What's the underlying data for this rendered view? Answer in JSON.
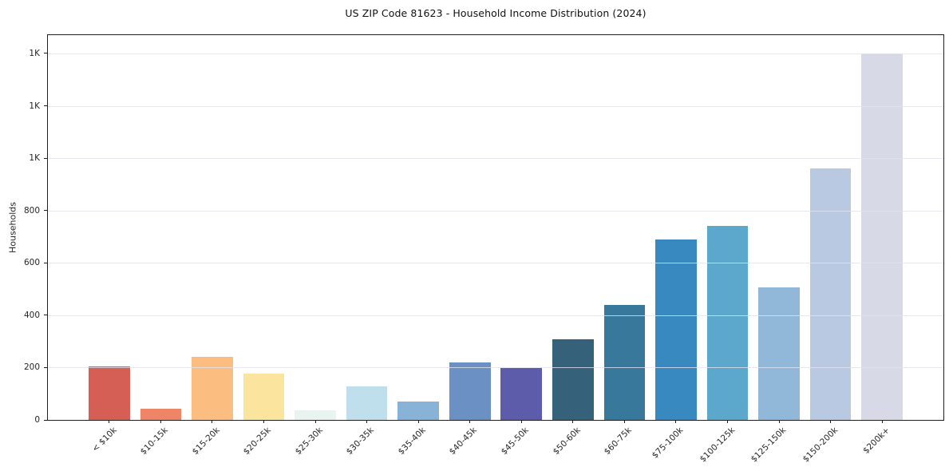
{
  "window": {
    "title": "US ZIP Code 81623 - Household Income Distribution (2024)"
  },
  "chart_data": {
    "type": "bar",
    "title": "US ZIP Code 81623 - Household Income Distribution (2024)",
    "xlabel": "",
    "ylabel": "Households",
    "categories": [
      "< $10k",
      "$10-15k",
      "$15-20k",
      "$20-25k",
      "$25-30k",
      "$30-35k",
      "$35-40k",
      "$40-45k",
      "$45-50k",
      "$50-60k",
      "$60-75k",
      "$75-100k",
      "$100-125k",
      "$125-150k",
      "$150-200k",
      "$200k+"
    ],
    "values": [
      204,
      44,
      241,
      177,
      37,
      128,
      70,
      219,
      198,
      307,
      440,
      688,
      740,
      507,
      960,
      1400
    ],
    "bar_colors": [
      "#d65f55",
      "#ef8466",
      "#fcbd80",
      "#fbe49e",
      "#e9f4f1",
      "#bfdfec",
      "#89b2d7",
      "#6b90c4",
      "#5c5caa",
      "#36617b",
      "#38789b",
      "#3789bf",
      "#5ca7cc",
      "#92b8d9",
      "#b9c9e1",
      "#d7d9e7"
    ],
    "ylim": [
      0,
      1470
    ],
    "yticks": [
      {
        "value": 0,
        "label": "0"
      },
      {
        "value": 200,
        "label": "200"
      },
      {
        "value": 400,
        "label": "400"
      },
      {
        "value": 600,
        "label": "600"
      },
      {
        "value": 800,
        "label": "800"
      },
      {
        "value": 1000,
        "label": "1K"
      },
      {
        "value": 1200,
        "label": "1K"
      },
      {
        "value": 1400,
        "label": "1K"
      }
    ],
    "grid": "horizontal",
    "legend": "none",
    "background_color": "#ffffff",
    "gridline_color": "#e4e4ef",
    "spine_color": "#1f1f1f",
    "x_label_rotation_deg": 45
  }
}
